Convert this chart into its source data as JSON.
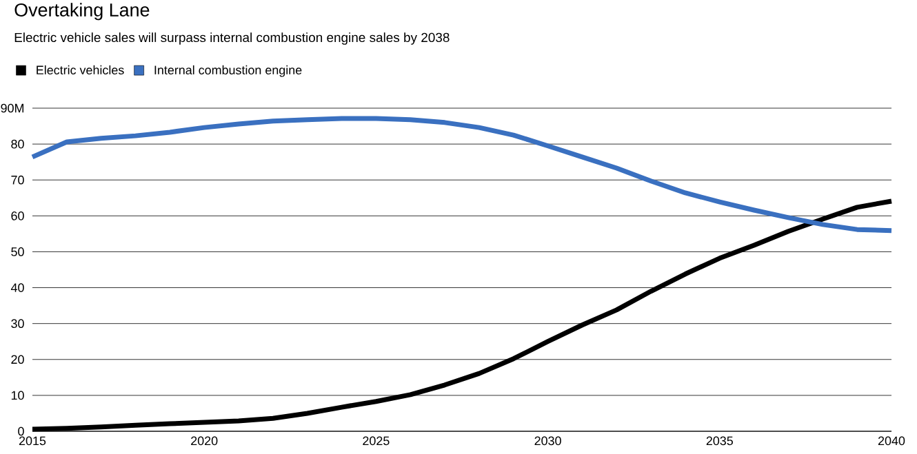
{
  "chart_data": {
    "type": "line",
    "title": "Overtaking Lane",
    "subtitle": "Electric vehicle sales will surpass internal combustion engine sales by 2038",
    "x": [
      2015,
      2016,
      2017,
      2018,
      2019,
      2020,
      2021,
      2022,
      2023,
      2024,
      2025,
      2026,
      2027,
      2028,
      2029,
      2030,
      2031,
      2032,
      2033,
      2034,
      2035,
      2036,
      2037,
      2038,
      2039,
      2040
    ],
    "series": [
      {
        "name": "Electric vehicles",
        "color": "#000000",
        "values": [
          0.6,
          0.8,
          1.2,
          1.7,
          2.1,
          2.5,
          2.9,
          3.6,
          5,
          6.7,
          8.3,
          10.2,
          12.9,
          16.1,
          20.2,
          25,
          29.6,
          33.8,
          39,
          43.8,
          48.2,
          51.8,
          55.7,
          59.1,
          62.4,
          64.1
        ]
      },
      {
        "name": "Internal combustion engine",
        "color": "#3a70c0",
        "values": [
          76.4,
          80.6,
          81.6,
          82.3,
          83.3,
          84.6,
          85.6,
          86.4,
          86.8,
          87.1,
          87.1,
          86.8,
          86,
          84.6,
          82.5,
          79.5,
          76.4,
          73.3,
          69.7,
          66.4,
          63.9,
          61.6,
          59.5,
          57.6,
          56.2,
          55.9
        ]
      }
    ],
    "xlim": [
      2015,
      2040
    ],
    "xticks": [
      2015,
      2020,
      2025,
      2030,
      2035,
      2040
    ],
    "ylim": [
      0,
      90
    ],
    "yticks": [
      0,
      10,
      20,
      30,
      40,
      50,
      60,
      70,
      80,
      {
        "value": 90,
        "label": "90M"
      }
    ],
    "grid": "y",
    "legend": "top left",
    "marker": "none",
    "line_style": "solid"
  }
}
